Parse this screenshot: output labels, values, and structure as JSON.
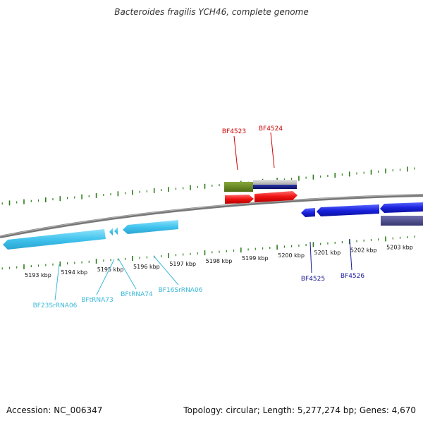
{
  "title": "Bacteroides fragilis YCH46, complete genome",
  "footer": {
    "accession": "Accession: NC_006347",
    "summary": "Topology: circular; Length: 5,277,274 bp; Genes: 4,670"
  },
  "scale_ticks": [
    {
      "kbp": 5193,
      "label": "5193 kbp"
    },
    {
      "kbp": 5194,
      "label": "5194 kbp"
    },
    {
      "kbp": 5195,
      "label": "5195 kbp"
    },
    {
      "kbp": 5196,
      "label": "5196 kbp"
    },
    {
      "kbp": 5197,
      "label": "5197 kbp"
    },
    {
      "kbp": 5198,
      "label": "5198 kbp"
    },
    {
      "kbp": 5199,
      "label": "5199 kbp"
    },
    {
      "kbp": 5200,
      "label": "5200 kbp"
    },
    {
      "kbp": 5201,
      "label": "5201 kbp"
    },
    {
      "kbp": 5202,
      "label": "5202 kbp"
    },
    {
      "kbp": 5203,
      "label": "5203 kbp"
    }
  ],
  "labels": {
    "BF4523": "BF4523",
    "BF4524": "BF4524",
    "BF4525": "BF4525",
    "BF4526": "BF4526",
    "BF23SrRNA06": "BF23SrRNA06",
    "BFtRNA73": "BFtRNA73",
    "BFtRNA74": "BFtRNA74",
    "BF16SrRNA06": "BF16SrRNA06"
  },
  "colors": {
    "backbone": "#888888",
    "ticks": "#2e7d1c",
    "rrna": "#45c6f0",
    "cds_forward": "#ee1111",
    "cds_reverse": "#1a22dd",
    "label_forward": "#cc0000",
    "label_reverse": "#1a1a99",
    "label_rna": "#3bb8d8",
    "orthology_green": "#5a7a1a",
    "orthology_gray": "#c2c2c2",
    "orthology_navy": "#131c7a",
    "orthology_purple": "#4a4a8a"
  }
}
